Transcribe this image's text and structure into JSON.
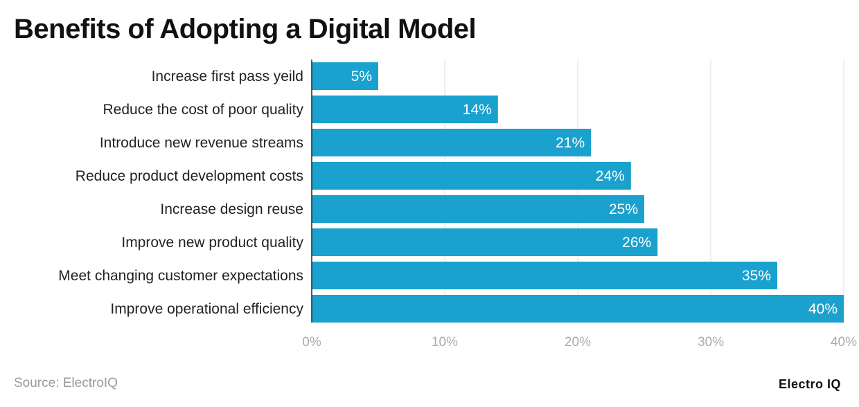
{
  "chart_data": {
    "type": "bar",
    "orientation": "horizontal",
    "title": "Benefits of Adopting a Digital Model",
    "categories": [
      "Increase first pass yeild",
      "Reduce the cost of poor quality",
      "Introduce new revenue streams",
      "Reduce product development costs",
      "Increase design reuse",
      "Improve new product quality",
      "Meet changing customer expectations",
      "Improve operational efficiency"
    ],
    "values": [
      5,
      14,
      21,
      24,
      25,
      26,
      35,
      40
    ],
    "data_labels": [
      "5%",
      "14%",
      "21%",
      "24%",
      "25%",
      "26%",
      "35%",
      "40%"
    ],
    "xlim": [
      0,
      40
    ],
    "x_ticks": [
      0,
      10,
      20,
      30,
      40
    ],
    "x_tick_labels": [
      "0%",
      "10%",
      "20%",
      "30%",
      "40%"
    ],
    "xlabel": "",
    "ylabel": "",
    "grid": true,
    "bar_color": "#1aa1ce"
  },
  "footer": {
    "source": "Source: ElectroIQ",
    "logo": "Electro IQ"
  }
}
